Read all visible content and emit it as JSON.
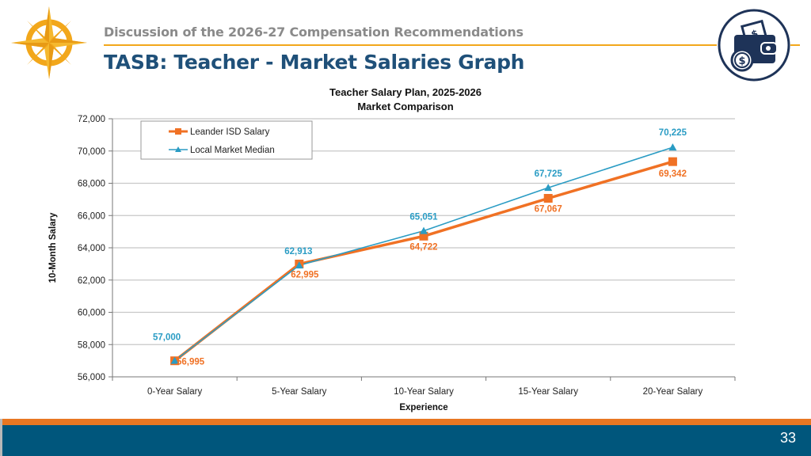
{
  "header": {
    "subtitle": "Discussion of the 2026-27 Compensation Recommendations",
    "title": "TASB: Teacher - Market Salaries Graph",
    "logo_icon": "compass-star-icon",
    "badge_icon": "wallet-dollar-icon"
  },
  "footer": {
    "page_number": "33"
  },
  "colors": {
    "leander": "#f07124",
    "market": "#2a9cc4",
    "title_blue": "#1f5079",
    "accent_gold": "#f2a71b",
    "footer_blue": "#00567c",
    "footer_orange": "#e87722"
  },
  "chart_data": {
    "type": "line",
    "title": "Teacher Salary Plan, 2025-2026",
    "subtitle": "Market Comparison",
    "xlabel": "Experience",
    "ylabel": "10-Month Salary",
    "categories": [
      "0-Year Salary",
      "5-Year Salary",
      "10-Year Salary",
      "15-Year Salary",
      "20-Year Salary"
    ],
    "series": [
      {
        "name": "Leander ISD Salary",
        "marker": "square",
        "values": [
          56995,
          62995,
          64722,
          67067,
          69342
        ],
        "labels": [
          "56,995",
          "62,995",
          "64,722",
          "67,067",
          "69,342"
        ]
      },
      {
        "name": "Local Market Median",
        "marker": "triangle",
        "values": [
          57000,
          62913,
          65051,
          67725,
          70225
        ],
        "labels": [
          "57,000",
          "62,913",
          "65,051",
          "67,725",
          "70,225"
        ]
      }
    ],
    "ylim": [
      56000,
      72000
    ],
    "yticks": [
      "56,000",
      "58,000",
      "60,000",
      "62,000",
      "64,000",
      "66,000",
      "68,000",
      "70,000",
      "72,000"
    ],
    "grid": true,
    "legend_position": "top-left inside"
  }
}
